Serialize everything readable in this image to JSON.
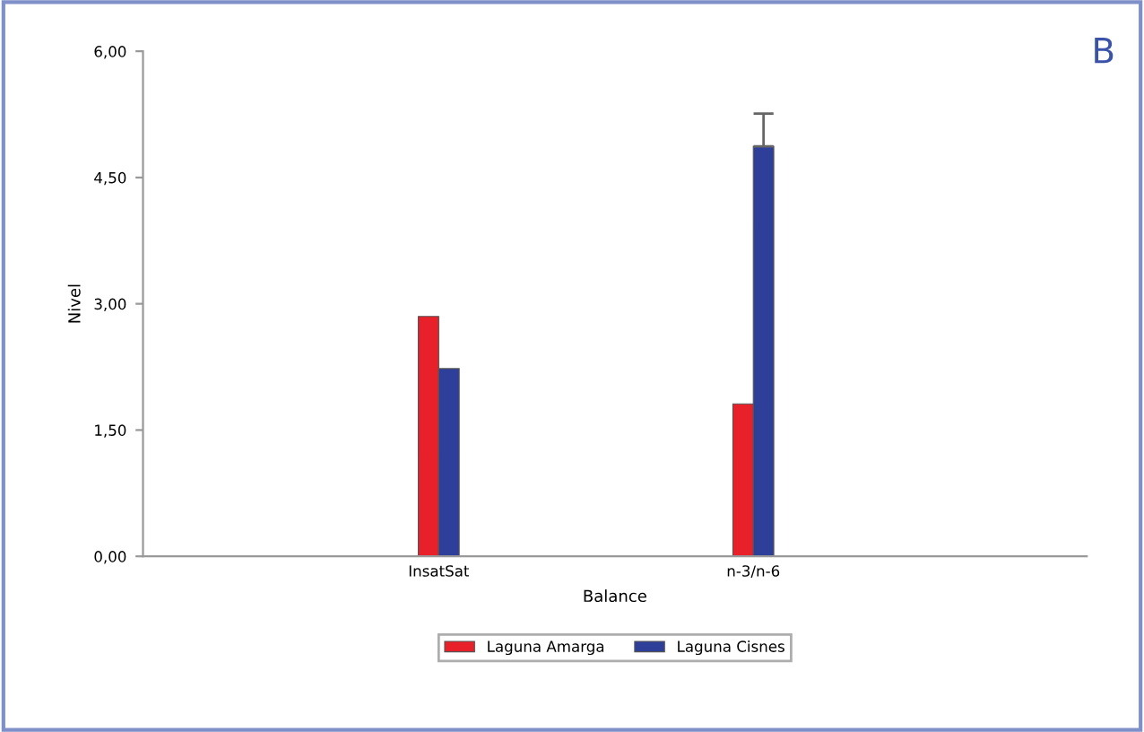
{
  "chart_data": {
    "type": "bar",
    "xlabel": "Balance",
    "ylabel": "Nivel",
    "categories": [
      "InsatSat",
      "n-3/n-6"
    ],
    "series": [
      {
        "name": "Laguna Amarga",
        "color": "#e8202a",
        "values": [
          2.85,
          1.81
        ]
      },
      {
        "name": "Laguna Cisnes",
        "color": "#2e3f9a",
        "values": [
          2.23,
          4.87
        ],
        "errors": [
          null,
          [
            4.87,
            5.26
          ]
        ]
      }
    ],
    "ylim": [
      0,
      6
    ],
    "yticks": [
      {
        "value": 0,
        "label": "0,00"
      },
      {
        "value": 1.5,
        "label": "1,50"
      },
      {
        "value": 3,
        "label": "3,00"
      },
      {
        "value": 4.5,
        "label": "4,50"
      },
      {
        "value": 6,
        "label": "6,00"
      }
    ],
    "grid": false,
    "legend": "bottom",
    "annotations": [
      "B"
    ]
  }
}
